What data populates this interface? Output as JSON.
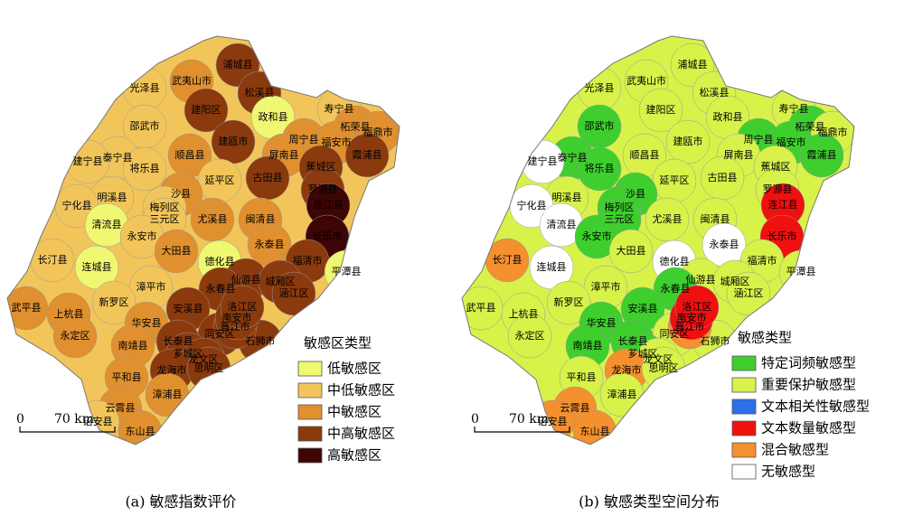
{
  "panels": [
    {
      "caption": "(a) 敏感指数评价",
      "legend": {
        "title": "敏感区类型",
        "items": [
          "低敏感区",
          "中低敏感区",
          "中敏感区",
          "中高敏感区",
          "高敏感区"
        ]
      }
    },
    {
      "caption": "(b) 敏感类型空间分布",
      "legend": {
        "title": "敏感类型",
        "items": [
          "特定词频敏感型",
          "重要保护敏感型",
          "文本相关性敏感型",
          "文本数量敏感型",
          "混合敏感型",
          "无敏感型"
        ]
      }
    }
  ],
  "scale": {
    "start": "0",
    "end": "70 km"
  },
  "county_labels": [
    "浦城县",
    "武夷山市",
    "光泽县",
    "松溪县",
    "寿宁县",
    "建阳区",
    "政和县",
    "柘荣县",
    "福鼎市",
    "邵武市",
    "周宁县",
    "福安市",
    "建瓯市",
    "屏南县",
    "霞浦县",
    "泰宁县",
    "顺昌县",
    "建宁县",
    "将乐县",
    "蕉城区",
    "古田县",
    "延平区",
    "罗源县",
    "明溪县",
    "沙县",
    "连江县",
    "宁化县",
    "梅列区",
    "三元区",
    "尤溪县",
    "闽清县",
    "清流县",
    "永安市",
    "大田县",
    "永泰县",
    "长乐市",
    "德化县",
    "长汀县",
    "连城县",
    "福清市",
    "平潭县",
    "仙游县",
    "漳平市",
    "永春县",
    "城厢区",
    "涵江区",
    "新罗区",
    "安溪县",
    "武平县",
    "上杭县",
    "华安县",
    "永定区",
    "南靖县",
    "长泰县",
    "同安区",
    "芗城区",
    "龙文区",
    "龙海市",
    "思明区",
    "平和县",
    "漳浦县",
    "云霄县",
    "诏安县",
    "东山县",
    "石狮市",
    "晋江市",
    "南安市",
    "洛江区"
  ]
}
